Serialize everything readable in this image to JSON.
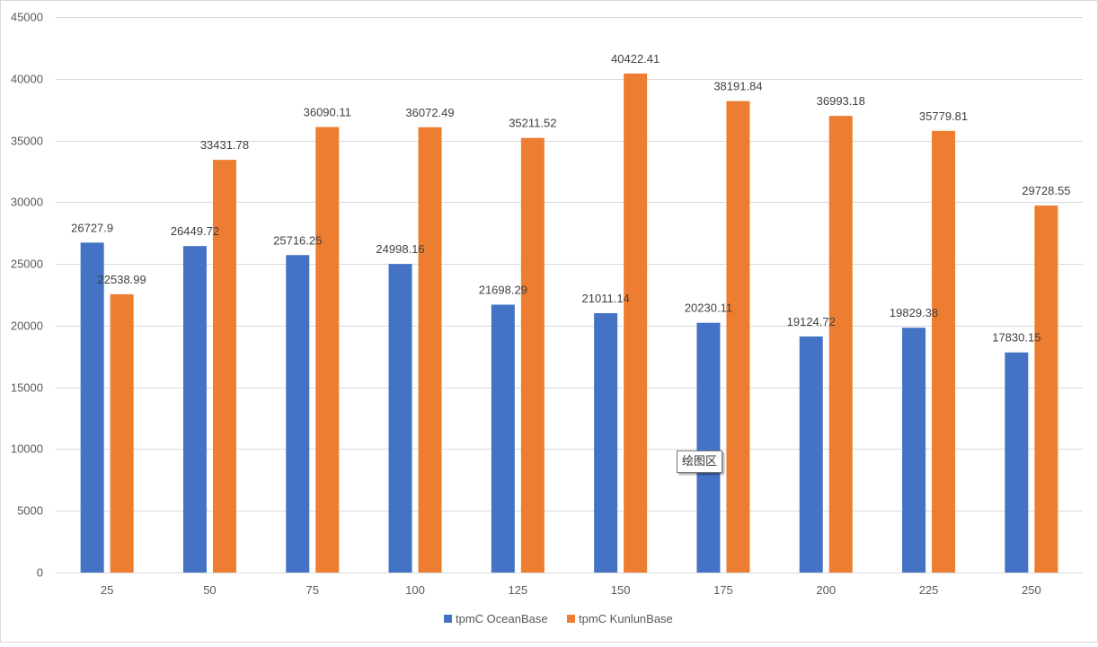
{
  "chart_data": {
    "type": "bar",
    "categories": [
      "25",
      "50",
      "75",
      "100",
      "125",
      "150",
      "175",
      "200",
      "225",
      "250"
    ],
    "series": [
      {
        "name": "tpmC OceanBase",
        "color": "#4472C4",
        "values": [
          26727.9,
          26449.72,
          25716.25,
          24998.16,
          21698.29,
          21011.14,
          20230.11,
          19124.72,
          19829.38,
          17830.15
        ]
      },
      {
        "name": "tpmC KunlunBase",
        "color": "#ED7D31",
        "values": [
          22538.99,
          33431.78,
          36090.11,
          36072.49,
          35211.52,
          40422.41,
          38191.84,
          36993.18,
          35779.81,
          29728.55
        ]
      }
    ],
    "title": "",
    "xlabel": "",
    "ylabel": "",
    "ylim": [
      0,
      45000
    ],
    "ytick_step": 5000,
    "grid": true,
    "legend_position": "bottom",
    "data_labels": true
  },
  "tooltip": {
    "text": "绘图区"
  }
}
